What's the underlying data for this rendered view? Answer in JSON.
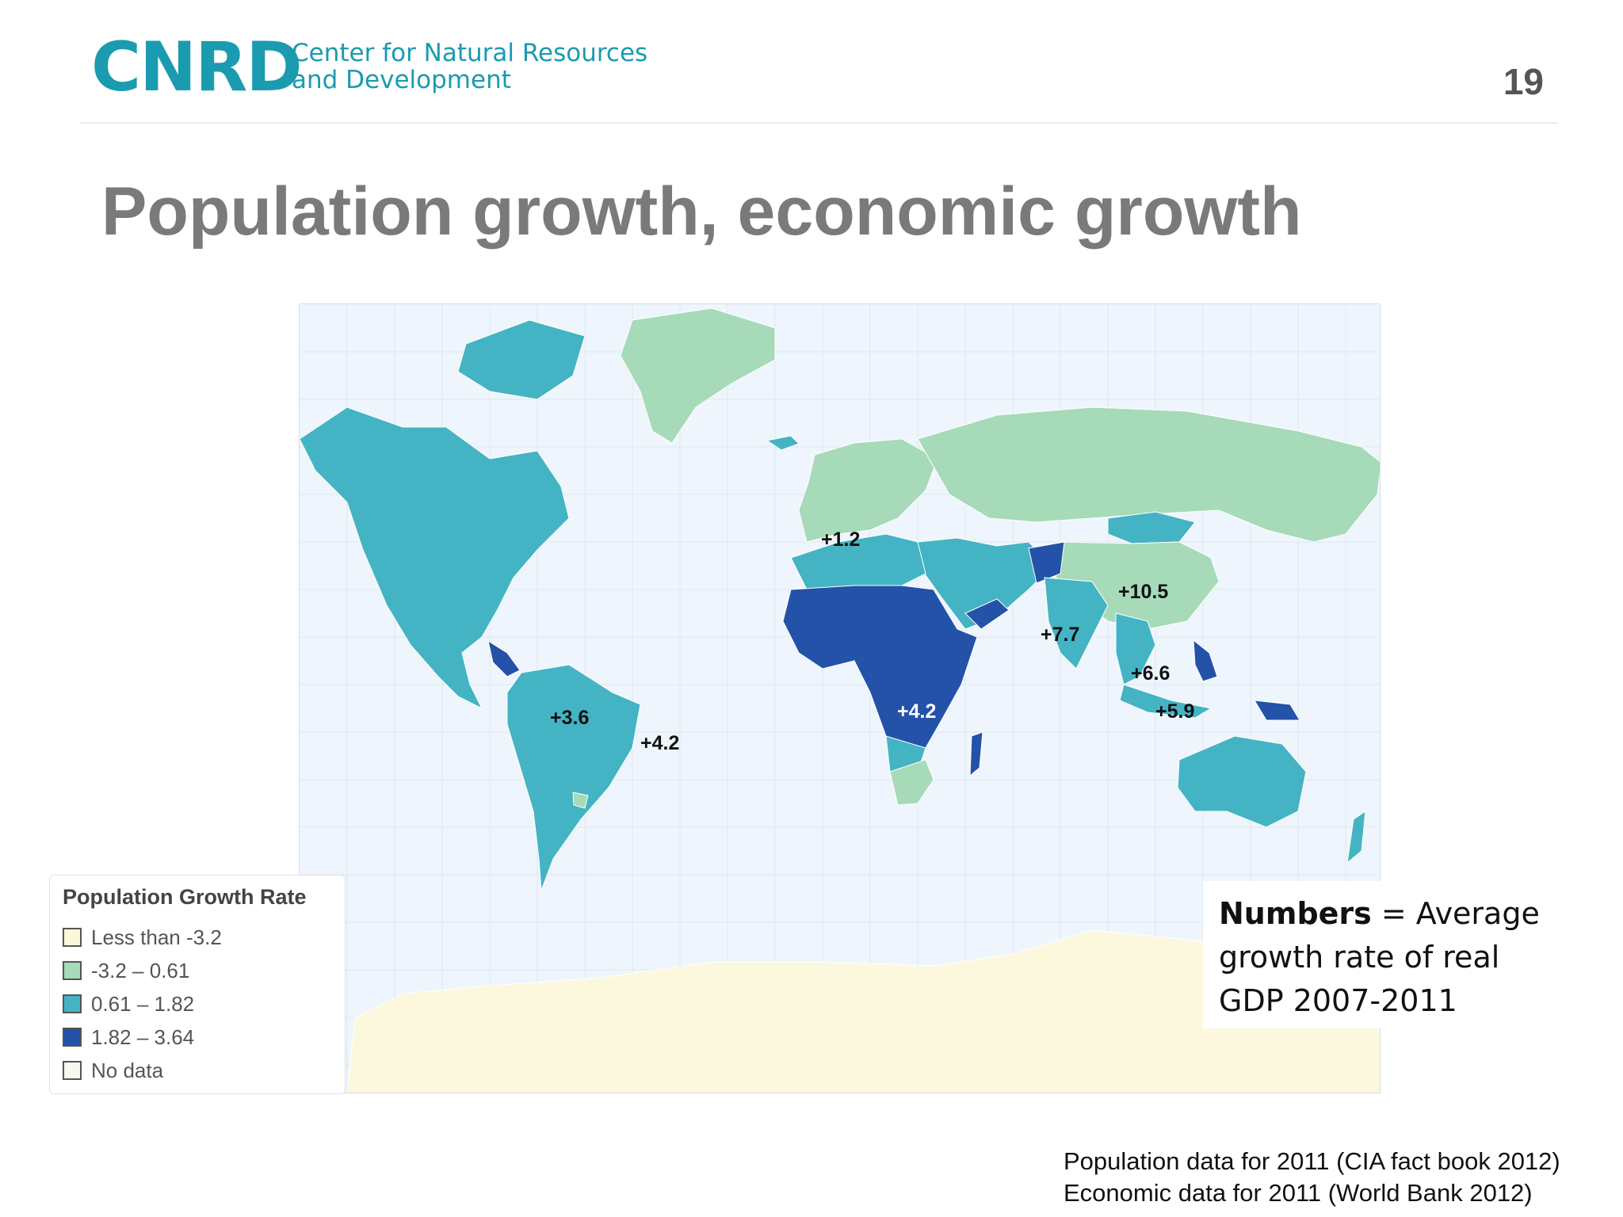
{
  "header": {
    "logo": "CNRD",
    "org_line1": "Center for Natural Resources",
    "org_line2": "and Development",
    "page_number": "19"
  },
  "title": "Population growth, economic growth",
  "colors": {
    "less_than": "#fbf8d8",
    "low": "#a6dab8",
    "mid": "#44b4c4",
    "high": "#2352a8",
    "no_data": "#f8f8ee",
    "ocean": "#eef5fc",
    "antarctica": "#fcf8de"
  },
  "legend": {
    "title": "Population Growth Rate",
    "items": [
      {
        "label": "Less than -3.2",
        "color": "#fbf8d8"
      },
      {
        "label": "-3.2 – 0.61",
        "color": "#a6dab8"
      },
      {
        "label": "0.61 – 1.82",
        "color": "#44b4c4"
      },
      {
        "label": "1.82 – 3.64",
        "color": "#2352a8"
      },
      {
        "label": "No data",
        "color": "#f8f8ee"
      }
    ]
  },
  "gdp_labels": {
    "europe": "+1.2",
    "china": "+10.5",
    "india": "+7.7",
    "se_asia": "+6.6",
    "indonesia": "+5.9",
    "africa": "+4.2",
    "latin_america": "+3.6",
    "brazil": "+4.2"
  },
  "note": {
    "bold": "Numbers",
    "line1_rest": " = Average",
    "line2": "growth rate of real",
    "line3": "GDP 2007-2011"
  },
  "sources": {
    "line1": "Population data for 2011 (CIA fact book 2012)",
    "line2": "Economic data for 2011 (World Bank 2012)"
  }
}
